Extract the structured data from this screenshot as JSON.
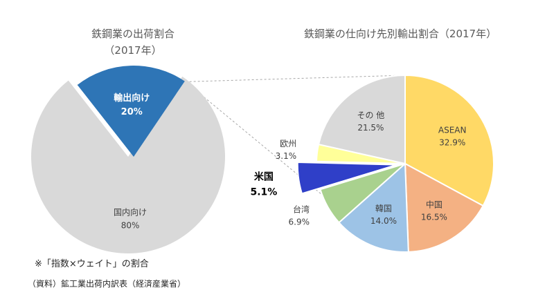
{
  "chart_data": [
    {
      "type": "pie",
      "title": "鉄鋼業の出荷割合",
      "subtitle": "（2017年）",
      "slices": [
        {
          "label": "国内向け",
          "value": 80,
          "value_label": "80%",
          "color": "#D9D9D9"
        },
        {
          "label": "輸出向け",
          "value": 20,
          "value_label": "20%",
          "color": "#2E75B6",
          "exploded": true
        }
      ]
    },
    {
      "type": "pie",
      "title": "鉄鋼業の仕向け先別輸出割合（2017年）",
      "slices": [
        {
          "label": "ASEAN",
          "value": 32.9,
          "value_label": "32.9%",
          "color": "#FFD966"
        },
        {
          "label": "中国",
          "value": 16.5,
          "value_label": "16.5%",
          "color": "#F4B183"
        },
        {
          "label": "韓国",
          "value": 14.0,
          "value_label": "14.0%",
          "color": "#9DC3E6"
        },
        {
          "label": "台湾",
          "value": 6.9,
          "value_label": "6.9%",
          "color": "#A9D18E"
        },
        {
          "label": "米国",
          "value": 5.1,
          "value_label": "5.1%",
          "color": "#2F3FC8",
          "exploded": true
        },
        {
          "label": "欧州",
          "value": 3.1,
          "value_label": "3.1%",
          "color": "#FFFF99"
        },
        {
          "label": "その 他",
          "value": 21.5,
          "value_label": "21.5%",
          "color": "#D9D9D9"
        }
      ]
    }
  ],
  "notes": {
    "index_note": "※「指数×ウェイト」の割合",
    "source": "（資料）鉱工業出荷内訳表（経済産業省）"
  },
  "colors": {
    "connector": "#A6A6A6"
  }
}
